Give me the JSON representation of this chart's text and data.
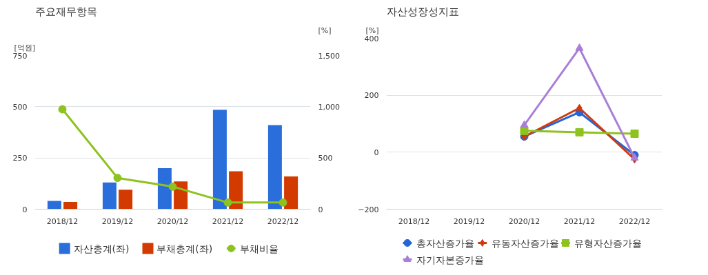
{
  "chart_data": [
    {
      "type": "bar",
      "title": "주요재무항목",
      "ylabel": "[억원]",
      "y2label": "[%]",
      "categories": [
        "2018/12",
        "2019/12",
        "2020/12",
        "2021/12",
        "2022/12"
      ],
      "ylim": [
        0,
        750
      ],
      "yticks": [
        0,
        250,
        500,
        750
      ],
      "y2lim": [
        0,
        1500
      ],
      "y2ticks": [
        0,
        500,
        {
          "value": 1000,
          "label": "1,000"
        },
        {
          "value": 1500,
          "label": "1,500"
        }
      ],
      "grid": "y",
      "legend": "bottom",
      "series": [
        {
          "name": "자산총계(좌)",
          "color": "#2a6edb",
          "values": [
            40,
            130,
            200,
            485,
            410
          ]
        },
        {
          "name": "부채총계(좌)",
          "color": "#d33a00",
          "values": [
            35,
            95,
            135,
            185,
            160
          ]
        },
        {
          "name": "부채비율",
          "type": "line",
          "axis": "y2",
          "marker": "circle",
          "color": "#8dc21f",
          "values": [
            975,
            305,
            220,
            65,
            65
          ]
        }
      ]
    },
    {
      "type": "line",
      "title": "자산성장성지표",
      "ylabel": "[%]",
      "categories": [
        "2018/12",
        "2019/12",
        "2020/12",
        "2021/12",
        "2022/12"
      ],
      "ylim": [
        -200,
        400
      ],
      "yticks": [
        -200,
        0,
        200,
        400
      ],
      "grid": "y",
      "legend": "bottom",
      "series": [
        {
          "name": "총자산증가율",
          "marker": "circle",
          "color": "#2566d6",
          "values": [
            null,
            null,
            55,
            140,
            -10
          ]
        },
        {
          "name": "유동자산증가율",
          "marker": "diamond",
          "color": "#d03a10",
          "values": [
            null,
            null,
            55,
            155,
            -25
          ]
        },
        {
          "name": "유형자산증가율",
          "marker": "square",
          "color": "#8dc21f",
          "values": [
            null,
            null,
            75,
            70,
            65
          ]
        },
        {
          "name": "자기자본증가율",
          "marker": "triangle",
          "color": "#a77fd8",
          "values": [
            null,
            null,
            95,
            365,
            -20
          ]
        }
      ]
    }
  ]
}
